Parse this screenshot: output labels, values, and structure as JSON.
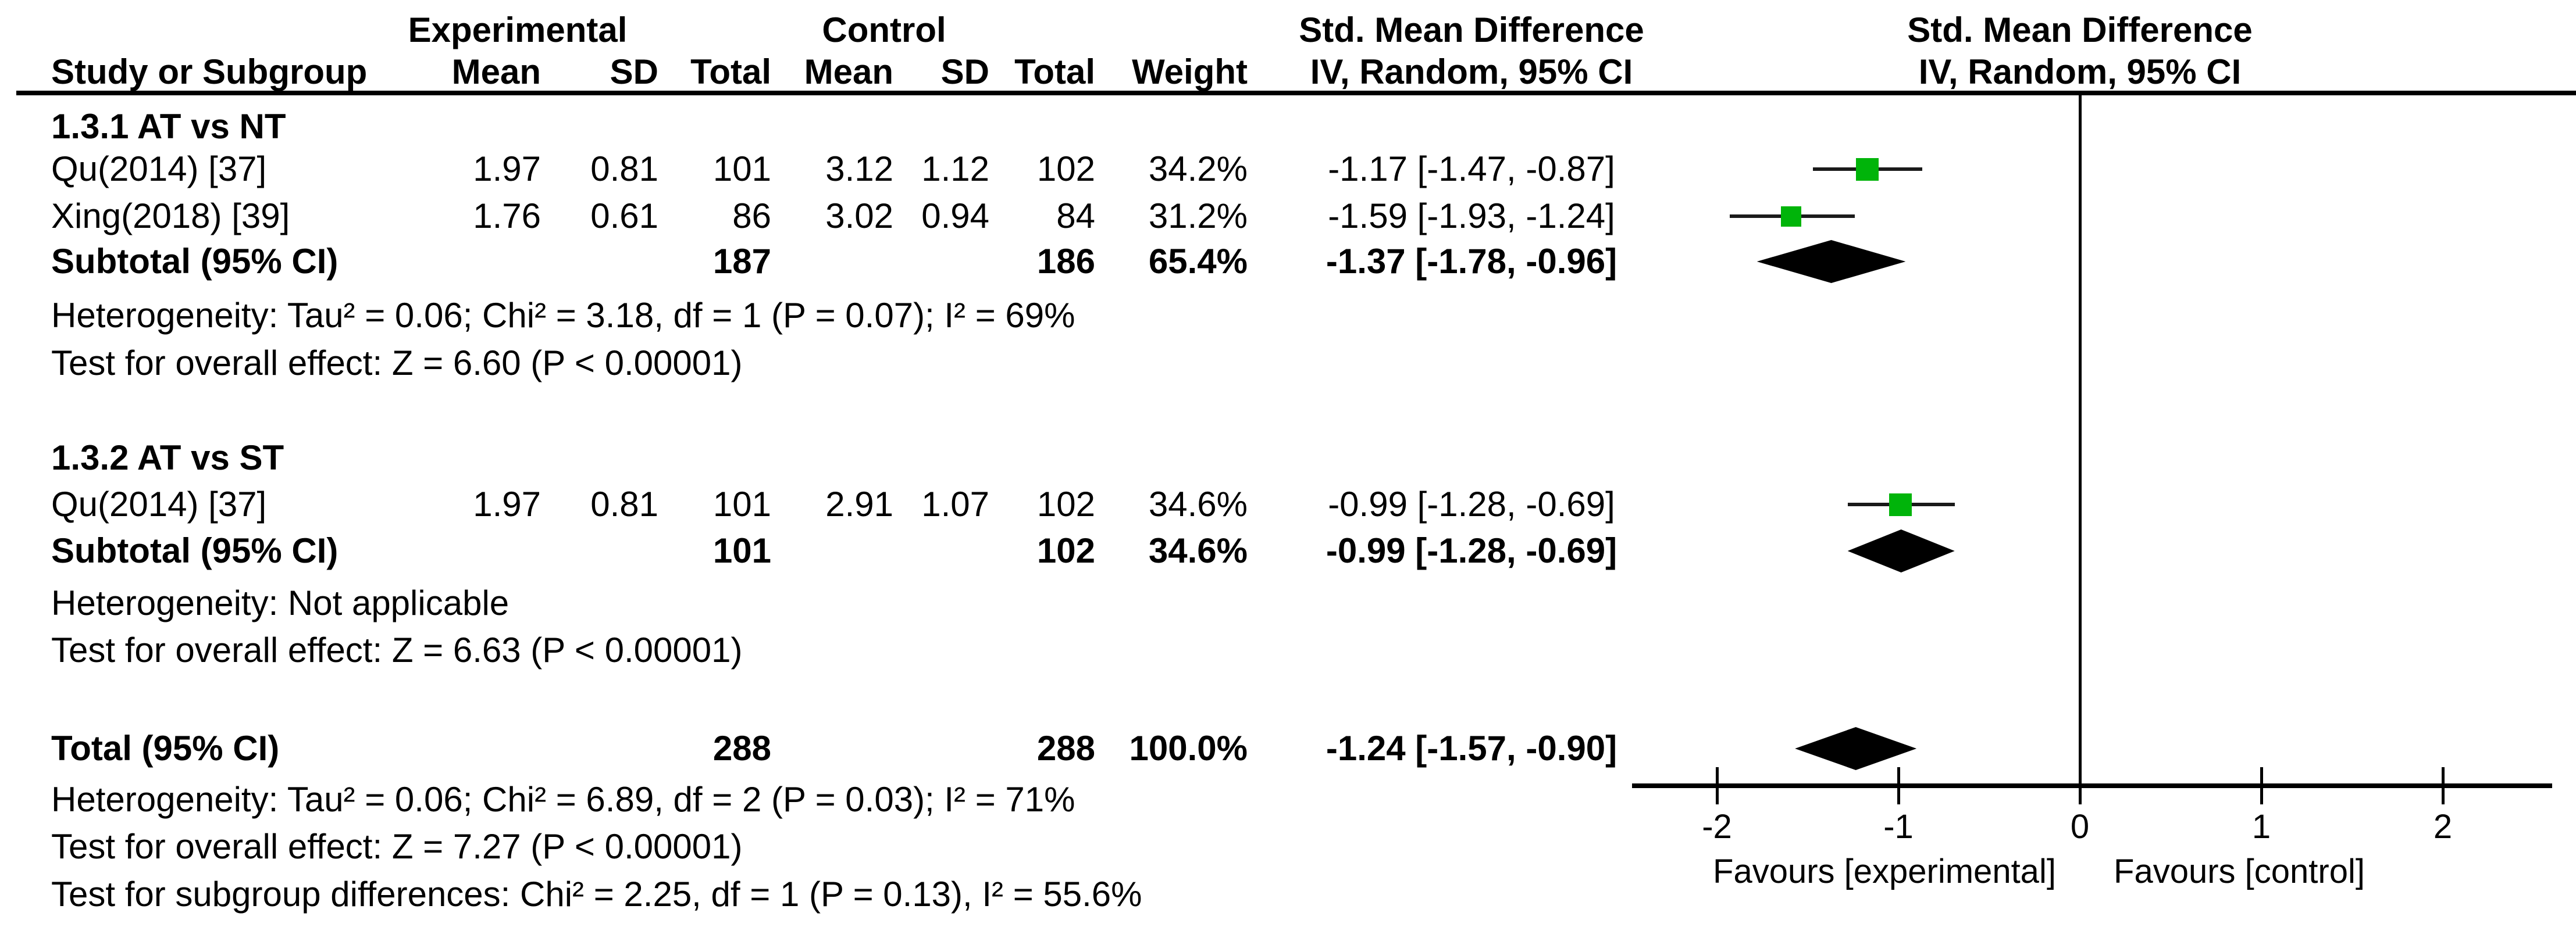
{
  "headers": {
    "experimental": "Experimental",
    "control": "Control",
    "smd_col_title": "Std. Mean Difference",
    "smd_plot_title": "Std. Mean Difference",
    "study": "Study or Subgroup",
    "mean": "Mean",
    "sd": "SD",
    "total": "Total",
    "weight": "Weight",
    "method_col": "IV, Random, 95% CI",
    "method_plot": "IV, Random, 95% CI"
  },
  "sections": {
    "s1": {
      "title": "1.3.1 AT vs NT",
      "studies": [
        {
          "name": "Qu(2014) [37]",
          "exp_mean": "1.97",
          "exp_sd": "0.81",
          "exp_total": "101",
          "ctrl_mean": "3.12",
          "ctrl_sd": "1.12",
          "ctrl_total": "102",
          "weight": "34.2%",
          "smd": "-1.17 [-1.47, -0.87]"
        },
        {
          "name": "Xing(2018) [39]",
          "exp_mean": "1.76",
          "exp_sd": "0.61",
          "exp_total": "86",
          "ctrl_mean": "3.02",
          "ctrl_sd": "0.94",
          "ctrl_total": "84",
          "weight": "31.2%",
          "smd": "-1.59 [-1.93, -1.24]"
        }
      ],
      "subtotal": {
        "label": "Subtotal (95% CI)",
        "exp_total": "187",
        "ctrl_total": "186",
        "weight": "65.4%",
        "smd": "-1.37 [-1.78, -0.96]"
      },
      "heterogeneity": "Heterogeneity: Tau² = 0.06; Chi² = 3.18, df = 1 (P = 0.07); I² = 69%",
      "overall_effect": "Test for overall effect: Z = 6.60 (P < 0.00001)"
    },
    "s2": {
      "title": "1.3.2 AT vs ST",
      "studies": [
        {
          "name": "Qu(2014) [37]",
          "exp_mean": "1.97",
          "exp_sd": "0.81",
          "exp_total": "101",
          "ctrl_mean": "2.91",
          "ctrl_sd": "1.07",
          "ctrl_total": "102",
          "weight": "34.6%",
          "smd": "-0.99 [-1.28, -0.69]"
        }
      ],
      "subtotal": {
        "label": "Subtotal (95% CI)",
        "exp_total": "101",
        "ctrl_total": "102",
        "weight": "34.6%",
        "smd": "-0.99 [-1.28, -0.69]"
      },
      "heterogeneity": "Heterogeneity: Not applicable",
      "overall_effect": "Test for overall effect: Z = 6.63 (P < 0.00001)"
    },
    "total": {
      "label": "Total (95% CI)",
      "exp_total": "288",
      "ctrl_total": "288",
      "weight": "100.0%",
      "smd": "-1.24 [-1.57, -0.90]",
      "heterogeneity": "Heterogeneity: Tau² = 0.06; Chi² = 6.89, df = 2 (P = 0.03); I² = 71%",
      "overall_effect": "Test for overall effect: Z = 7.27 (P < 0.00001)",
      "subgroup_diff": "Test for subgroup differences: Chi² = 2.25, df = 1 (P = 0.13), I² = 55.6%"
    }
  },
  "colors": {
    "marker_green": "#00b40a",
    "diamond_black": "#000000",
    "ci_line": "#1a1a1a",
    "axis_black": "#000000"
  },
  "chart_data": {
    "type": "forest",
    "effect_measure": "Std. Mean Difference (IV, Random, 95% CI)",
    "x_axis": {
      "min": -2.5,
      "max": 2.6,
      "ticks": [
        -2,
        -1,
        0,
        1,
        2
      ],
      "zero_line": 0,
      "tick_labels": [
        "-2",
        "-1",
        "0",
        "1",
        "2"
      ]
    },
    "favours_left": "Favours [experimental]",
    "favours_right": "Favours [control]",
    "points": [
      {
        "row": "qu1",
        "label": "Qu(2014) [37]",
        "smd": -1.17,
        "ci": [
          -1.47,
          -0.87
        ],
        "weight_pct": 34.2,
        "marker": "square"
      },
      {
        "row": "xing",
        "label": "Xing(2018) [39]",
        "smd": -1.59,
        "ci": [
          -1.93,
          -1.24
        ],
        "weight_pct": 31.2,
        "marker": "square"
      },
      {
        "row": "sub1",
        "label": "Subtotal 1.3.1",
        "smd": -1.37,
        "ci": [
          -1.78,
          -0.96
        ],
        "weight_pct": 65.4,
        "marker": "diamond"
      },
      {
        "row": "qu2",
        "label": "Qu(2014) [37]",
        "smd": -0.99,
        "ci": [
          -1.28,
          -0.69
        ],
        "weight_pct": 34.6,
        "marker": "square"
      },
      {
        "row": "sub2",
        "label": "Subtotal 1.3.2",
        "smd": -0.99,
        "ci": [
          -1.28,
          -0.69
        ],
        "weight_pct": 34.6,
        "marker": "diamond"
      },
      {
        "row": "total",
        "label": "Total (95% CI)",
        "smd": -1.24,
        "ci": [
          -1.57,
          -0.9
        ],
        "weight_pct": 100.0,
        "marker": "diamond"
      }
    ]
  }
}
